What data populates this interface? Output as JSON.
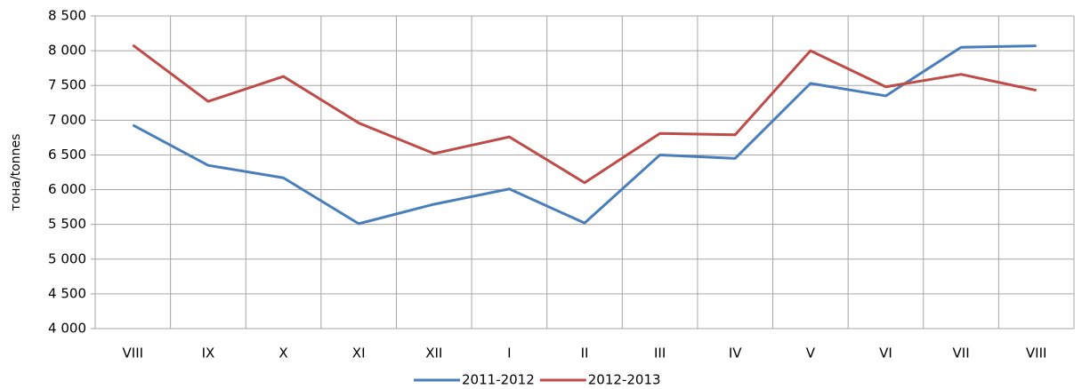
{
  "chart_data": {
    "type": "line",
    "y_label": "тона/tonnes",
    "categories": [
      "VIII",
      "IX",
      "X",
      "XI",
      "XII",
      "I",
      "II",
      "III",
      "IV",
      "V",
      "VI",
      "VII",
      "VIII"
    ],
    "series": [
      {
        "name": "2011-2012",
        "color": "#4a7ebb",
        "values": [
          6930,
          6350,
          6170,
          5510,
          5790,
          6010,
          5520,
          6500,
          6450,
          7530,
          7350,
          8050,
          8070
        ]
      },
      {
        "name": "2012-2013",
        "color": "#be4b48",
        "values": [
          8080,
          7270,
          7630,
          6960,
          6520,
          6760,
          6100,
          6810,
          6790,
          8000,
          7480,
          7660,
          7430
        ]
      }
    ],
    "ylim": [
      4000,
      8500
    ],
    "yticks": [
      {
        "value": 4000,
        "label": "4 000"
      },
      {
        "value": 4500,
        "label": "4 500"
      },
      {
        "value": 5000,
        "label": "5 000"
      },
      {
        "value": 5500,
        "label": "5 500"
      },
      {
        "value": 6000,
        "label": "6 000"
      },
      {
        "value": 6500,
        "label": "6 500"
      },
      {
        "value": 7000,
        "label": "7 000"
      },
      {
        "value": 7500,
        "label": "7 500"
      },
      {
        "value": 8000,
        "label": "8 000"
      },
      {
        "value": 8500,
        "label": "8 500"
      }
    ],
    "grid": true,
    "legend": "bottom"
  }
}
